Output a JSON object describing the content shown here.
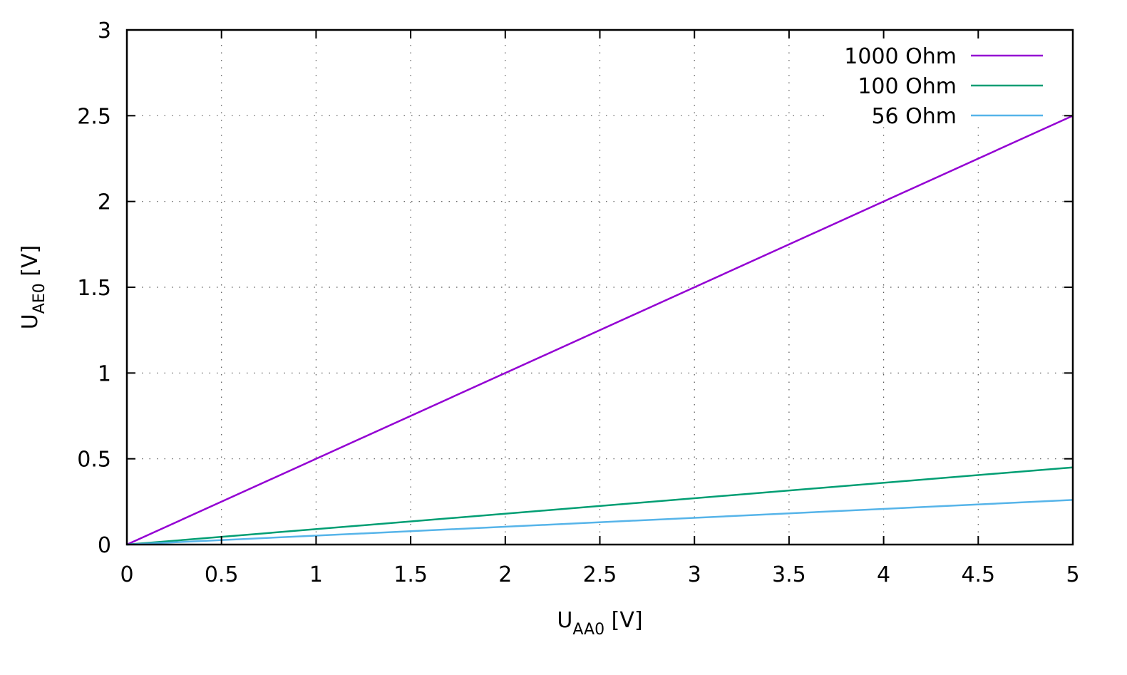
{
  "chart_data": {
    "type": "line",
    "xlabel": {
      "main": "U",
      "sub": "AA0",
      "unit": " [V]"
    },
    "ylabel": {
      "main": "U",
      "sub": "AE0",
      "unit": " [V]"
    },
    "xlim": [
      0,
      5
    ],
    "ylim": [
      0,
      3
    ],
    "xticks": [
      {
        "value": 0,
        "label": "0"
      },
      {
        "value": 0.5,
        "label": "0.5"
      },
      {
        "value": 1,
        "label": "1"
      },
      {
        "value": 1.5,
        "label": "1.5"
      },
      {
        "value": 2,
        "label": "2"
      },
      {
        "value": 2.5,
        "label": "2.5"
      },
      {
        "value": 3,
        "label": "3"
      },
      {
        "value": 3.5,
        "label": "3.5"
      },
      {
        "value": 4,
        "label": "4"
      },
      {
        "value": 4.5,
        "label": "4.5"
      },
      {
        "value": 5,
        "label": "5"
      }
    ],
    "yticks": [
      {
        "value": 0,
        "label": "0"
      },
      {
        "value": 0.5,
        "label": "0.5"
      },
      {
        "value": 1,
        "label": "1"
      },
      {
        "value": 1.5,
        "label": "1.5"
      },
      {
        "value": 2,
        "label": "2"
      },
      {
        "value": 2.5,
        "label": "2.5"
      },
      {
        "value": 3,
        "label": "3"
      }
    ],
    "grid": true,
    "legend_position": "top-right",
    "series": [
      {
        "name": "1000 Ohm",
        "color": "#9400d3",
        "x": [
          0,
          5
        ],
        "y": [
          0,
          2.5
        ]
      },
      {
        "name": "100 Ohm",
        "color": "#009e73",
        "x": [
          0,
          5
        ],
        "y": [
          0,
          0.45
        ]
      },
      {
        "name": "56 Ohm",
        "color": "#56b4e9",
        "x": [
          0,
          5
        ],
        "y": [
          0,
          0.26
        ]
      }
    ]
  }
}
